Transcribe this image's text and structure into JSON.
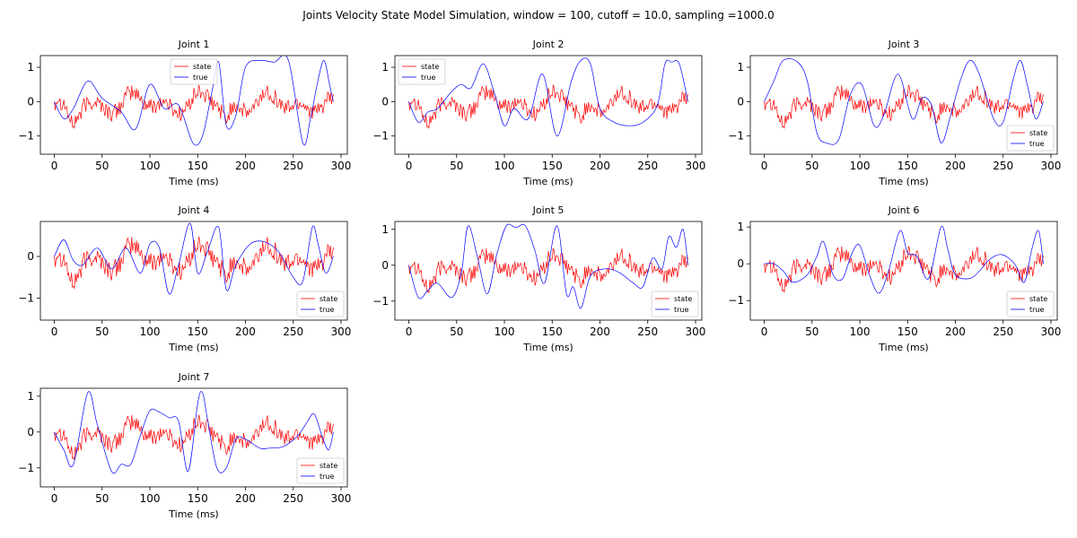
{
  "figure": {
    "suptitle": "Joints Velocity State Model Simulation, window = 100, cutoff = 10.0, sampling =1000.0"
  },
  "colors": {
    "state": "#ff0000",
    "true": "#0000ff",
    "axis": "#000000"
  },
  "chart_data": [
    {
      "type": "line",
      "title": "Joint 1",
      "xlabel": "Time (ms)",
      "ylabel": "",
      "xlim": [
        -14.6,
        306.6
      ],
      "ylim": [
        -1.53,
        1.34
      ],
      "xticks": [
        0,
        50,
        100,
        150,
        200,
        250,
        300
      ],
      "yticks": [
        -1,
        0,
        1
      ],
      "grid": false,
      "legend": "upper-center",
      "series": [
        {
          "name": "state",
          "color": "#ff0000"
        },
        {
          "name": "true",
          "color": "#0000ff",
          "x": [
            0,
            10,
            20,
            35,
            50,
            70,
            85,
            100,
            115,
            130,
            145,
            155,
            165,
            172,
            180,
            190,
            200,
            215,
            230,
            245,
            260,
            268,
            275,
            282,
            288,
            292
          ],
          "y": [
            0,
            -0.5,
            -0.2,
            0.6,
            0.1,
            -0.3,
            -0.8,
            0.5,
            -0.2,
            -0.1,
            -1.2,
            -1.0,
            0.3,
            1.15,
            -0.7,
            -0.4,
            1.0,
            1.2,
            1.15,
            1.2,
            -1.2,
            -0.5,
            0.5,
            1.2,
            0.5,
            0
          ]
        }
      ]
    },
    {
      "type": "line",
      "title": "Joint 2",
      "xlabel": "Time (ms)",
      "ylabel": "",
      "xlim": [
        -14.6,
        306.6
      ],
      "ylim": [
        -1.53,
        1.34
      ],
      "xticks": [
        0,
        50,
        100,
        150,
        200,
        250,
        300
      ],
      "yticks": [
        -1,
        0,
        1
      ],
      "grid": false,
      "legend": "upper-left",
      "series": [
        {
          "name": "state",
          "color": "#ff0000"
        },
        {
          "name": "true",
          "color": "#0000ff",
          "x": [
            0,
            10,
            20,
            30,
            45,
            55,
            65,
            78,
            90,
            100,
            110,
            125,
            140,
            155,
            170,
            180,
            190,
            200,
            215,
            230,
            245,
            260,
            268,
            275,
            283,
            292
          ],
          "y": [
            0,
            -0.6,
            -0.3,
            -0.2,
            0.3,
            0.5,
            0.4,
            1.1,
            0.2,
            -0.7,
            -0.2,
            -0.5,
            0.8,
            -1.0,
            0.6,
            1.2,
            1.1,
            -0.2,
            -0.6,
            -0.7,
            -0.6,
            -0.1,
            1.1,
            1.15,
            1.1,
            0
          ]
        }
      ]
    },
    {
      "type": "line",
      "title": "Joint 3",
      "xlabel": "Time (ms)",
      "ylabel": "",
      "xlim": [
        -14.6,
        306.6
      ],
      "ylim": [
        -1.53,
        1.34
      ],
      "xticks": [
        0,
        50,
        100,
        150,
        200,
        250,
        300
      ],
      "yticks": [
        -1,
        0,
        1
      ],
      "grid": false,
      "legend": "lower-right",
      "series": [
        {
          "name": "state",
          "color": "#ff0000"
        },
        {
          "name": "true",
          "color": "#0000ff",
          "x": [
            0,
            10,
            20,
            35,
            45,
            55,
            65,
            78,
            90,
            102,
            115,
            125,
            140,
            155,
            165,
            175,
            185,
            195,
            205,
            215,
            225,
            240,
            250,
            260,
            268,
            276,
            284,
            292
          ],
          "y": [
            0,
            0.6,
            1.2,
            1.15,
            0.6,
            -0.9,
            -1.2,
            -1.1,
            0.2,
            0.5,
            -0.7,
            -0.4,
            0.8,
            -0.5,
            0.1,
            -0.1,
            -1.2,
            -0.4,
            0.6,
            1.2,
            0.8,
            -0.5,
            -0.6,
            0.6,
            1.2,
            0.4,
            -0.5,
            0
          ]
        }
      ]
    },
    {
      "type": "line",
      "title": "Joint 4",
      "xlabel": "Time (ms)",
      "ylabel": "",
      "xlim": [
        -14.6,
        306.6
      ],
      "ylim": [
        -1.53,
        0.84
      ],
      "xticks": [
        0,
        50,
        100,
        150,
        200,
        250,
        300
      ],
      "yticks": [
        -1,
        0
      ],
      "grid": false,
      "legend": "lower-right",
      "series": [
        {
          "name": "state",
          "color": "#ff0000"
        },
        {
          "name": "true",
          "color": "#0000ff",
          "x": [
            0,
            10,
            20,
            30,
            45,
            60,
            75,
            90,
            100,
            110,
            120,
            130,
            142,
            150,
            160,
            172,
            180,
            190,
            205,
            220,
            235,
            250,
            260,
            270,
            276,
            284,
            292
          ],
          "y": [
            0,
            0.4,
            -0.1,
            -0.2,
            0.2,
            -0.3,
            0.2,
            -0.4,
            0.3,
            0.2,
            -0.9,
            -0.2,
            0.8,
            -0.4,
            0.1,
            0.7,
            -0.8,
            -0.2,
            0.3,
            0.35,
            0.1,
            -0.5,
            -0.6,
            0.7,
            0.3,
            -0.4,
            0
          ]
        }
      ]
    },
    {
      "type": "line",
      "title": "Joint 5",
      "xlabel": "Time (ms)",
      "ylabel": "",
      "xlim": [
        -14.6,
        306.6
      ],
      "ylim": [
        -1.53,
        1.22
      ],
      "xticks": [
        0,
        50,
        100,
        150,
        200,
        250,
        300
      ],
      "yticks": [
        -1,
        0,
        1
      ],
      "grid": false,
      "legend": "lower-right",
      "series": [
        {
          "name": "state",
          "color": "#ff0000"
        },
        {
          "name": "true",
          "color": "#0000ff",
          "x": [
            0,
            10,
            20,
            30,
            45,
            55,
            62,
            72,
            82,
            92,
            102,
            112,
            122,
            132,
            142,
            155,
            165,
            172,
            180,
            190,
            205,
            220,
            235,
            245,
            255,
            265,
            272,
            280,
            287,
            292
          ],
          "y": [
            0,
            -0.9,
            -0.7,
            -0.5,
            -0.9,
            -0.2,
            1.1,
            0.2,
            -0.8,
            0.3,
            1.1,
            1.05,
            1.1,
            0.4,
            -0.5,
            1.1,
            -0.8,
            -0.6,
            -1.2,
            -0.3,
            -0.1,
            -0.2,
            -0.5,
            -0.6,
            0.2,
            -0.1,
            0.8,
            0.5,
            1.0,
            0
          ]
        }
      ]
    },
    {
      "type": "line",
      "title": "Joint 6",
      "xlabel": "Time (ms)",
      "ylabel": "",
      "xlim": [
        -14.6,
        306.6
      ],
      "ylim": [
        -1.53,
        1.15
      ],
      "xticks": [
        0,
        50,
        100,
        150,
        200,
        250,
        300
      ],
      "yticks": [
        -1,
        0,
        1
      ],
      "grid": false,
      "legend": "lower-right",
      "series": [
        {
          "name": "state",
          "color": "#ff0000"
        },
        {
          "name": "true",
          "color": "#0000ff",
          "x": [
            0,
            10,
            20,
            30,
            45,
            55,
            62,
            72,
            82,
            92,
            100,
            110,
            120,
            130,
            142,
            150,
            160,
            172,
            185,
            192,
            200,
            215,
            225,
            235,
            248,
            262,
            272,
            280,
            287,
            292
          ],
          "y": [
            0,
            0,
            -0.2,
            -0.5,
            -0.3,
            0.2,
            0.6,
            -0.3,
            -0.4,
            0.3,
            0.5,
            -0.3,
            -0.8,
            -0.2,
            0.9,
            0.3,
            0.2,
            -0.4,
            1.0,
            0.4,
            -0.3,
            -0.4,
            -0.2,
            0.1,
            0.25,
            0,
            -0.5,
            0.4,
            0.9,
            0
          ]
        }
      ]
    },
    {
      "type": "line",
      "title": "Joint 7",
      "xlabel": "Time (ms)",
      "ylabel": "",
      "xlim": [
        -14.6,
        306.6
      ],
      "ylim": [
        -1.53,
        1.22
      ],
      "xticks": [
        0,
        50,
        100,
        150,
        200,
        250,
        300
      ],
      "yticks": [
        -1,
        0,
        1
      ],
      "grid": false,
      "legend": "lower-right",
      "series": [
        {
          "name": "state",
          "color": "#ff0000"
        },
        {
          "name": "true",
          "color": "#0000ff",
          "x": [
            0,
            10,
            20,
            35,
            45,
            60,
            70,
            80,
            90,
            100,
            110,
            120,
            130,
            140,
            150,
            155,
            160,
            170,
            180,
            190,
            200,
            215,
            225,
            240,
            255,
            265,
            272,
            280,
            287,
            292
          ],
          "y": [
            0,
            -0.5,
            -0.9,
            1.1,
            0.2,
            -1.1,
            -0.9,
            -0.9,
            -0.1,
            0.6,
            0.55,
            0.4,
            0.3,
            -1.1,
            0.8,
            1.1,
            0.4,
            -1.0,
            -1.0,
            -0.2,
            -0.2,
            -0.45,
            -0.45,
            -0.4,
            -0.1,
            0.3,
            0.5,
            -0.1,
            -0.5,
            0
          ]
        }
      ]
    }
  ]
}
